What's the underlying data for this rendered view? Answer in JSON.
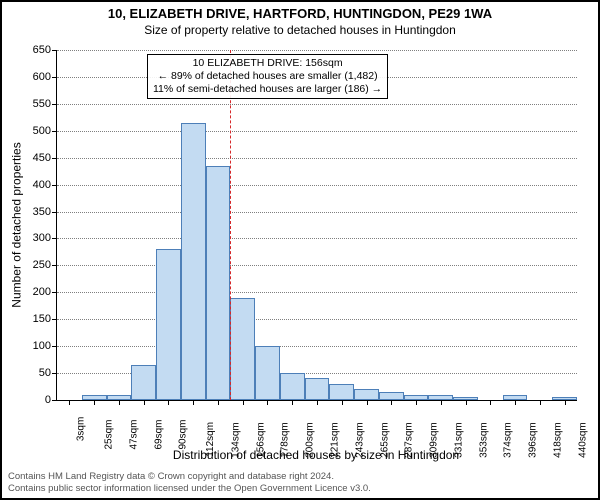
{
  "title": "10, ELIZABETH DRIVE, HARTFORD, HUNTINGDON, PE29 1WA",
  "subtitle": "Size of property relative to detached houses in Huntingdon",
  "y_axis_title": "Number of detached properties",
  "x_axis_title": "Distribution of detached houses by size in Huntingdon",
  "chart": {
    "type": "histogram",
    "ylim": [
      0,
      650
    ],
    "ytick_step": 50,
    "x_categories": [
      "3sqm",
      "25sqm",
      "47sqm",
      "69sqm",
      "90sqm",
      "112sqm",
      "134sqm",
      "156sqm",
      "178sqm",
      "200sqm",
      "221sqm",
      "243sqm",
      "265sqm",
      "287sqm",
      "309sqm",
      "331sqm",
      "353sqm",
      "374sqm",
      "396sqm",
      "418sqm",
      "440sqm"
    ],
    "values": [
      0,
      10,
      10,
      65,
      280,
      515,
      435,
      190,
      100,
      50,
      40,
      30,
      20,
      15,
      10,
      10,
      5,
      0,
      10,
      0,
      5
    ],
    "bar_fill": "#c3dbf2",
    "bar_stroke": "#4d7fb8",
    "grid_color": "#7f7f7f",
    "background": "#ffffff",
    "reference_line_index_after": 7,
    "reference_line_color": "#d62728"
  },
  "annotation": {
    "line1": "10 ELIZABETH DRIVE: 156sqm",
    "line2": "← 89% of detached houses are smaller (1,482)",
    "line3": "11% of semi-detached houses are larger (186) →"
  },
  "footer": {
    "line1": "Contains HM Land Registry data © Crown copyright and database right 2024.",
    "line2": "Contains public sector information licensed under the Open Government Licence v3.0."
  }
}
